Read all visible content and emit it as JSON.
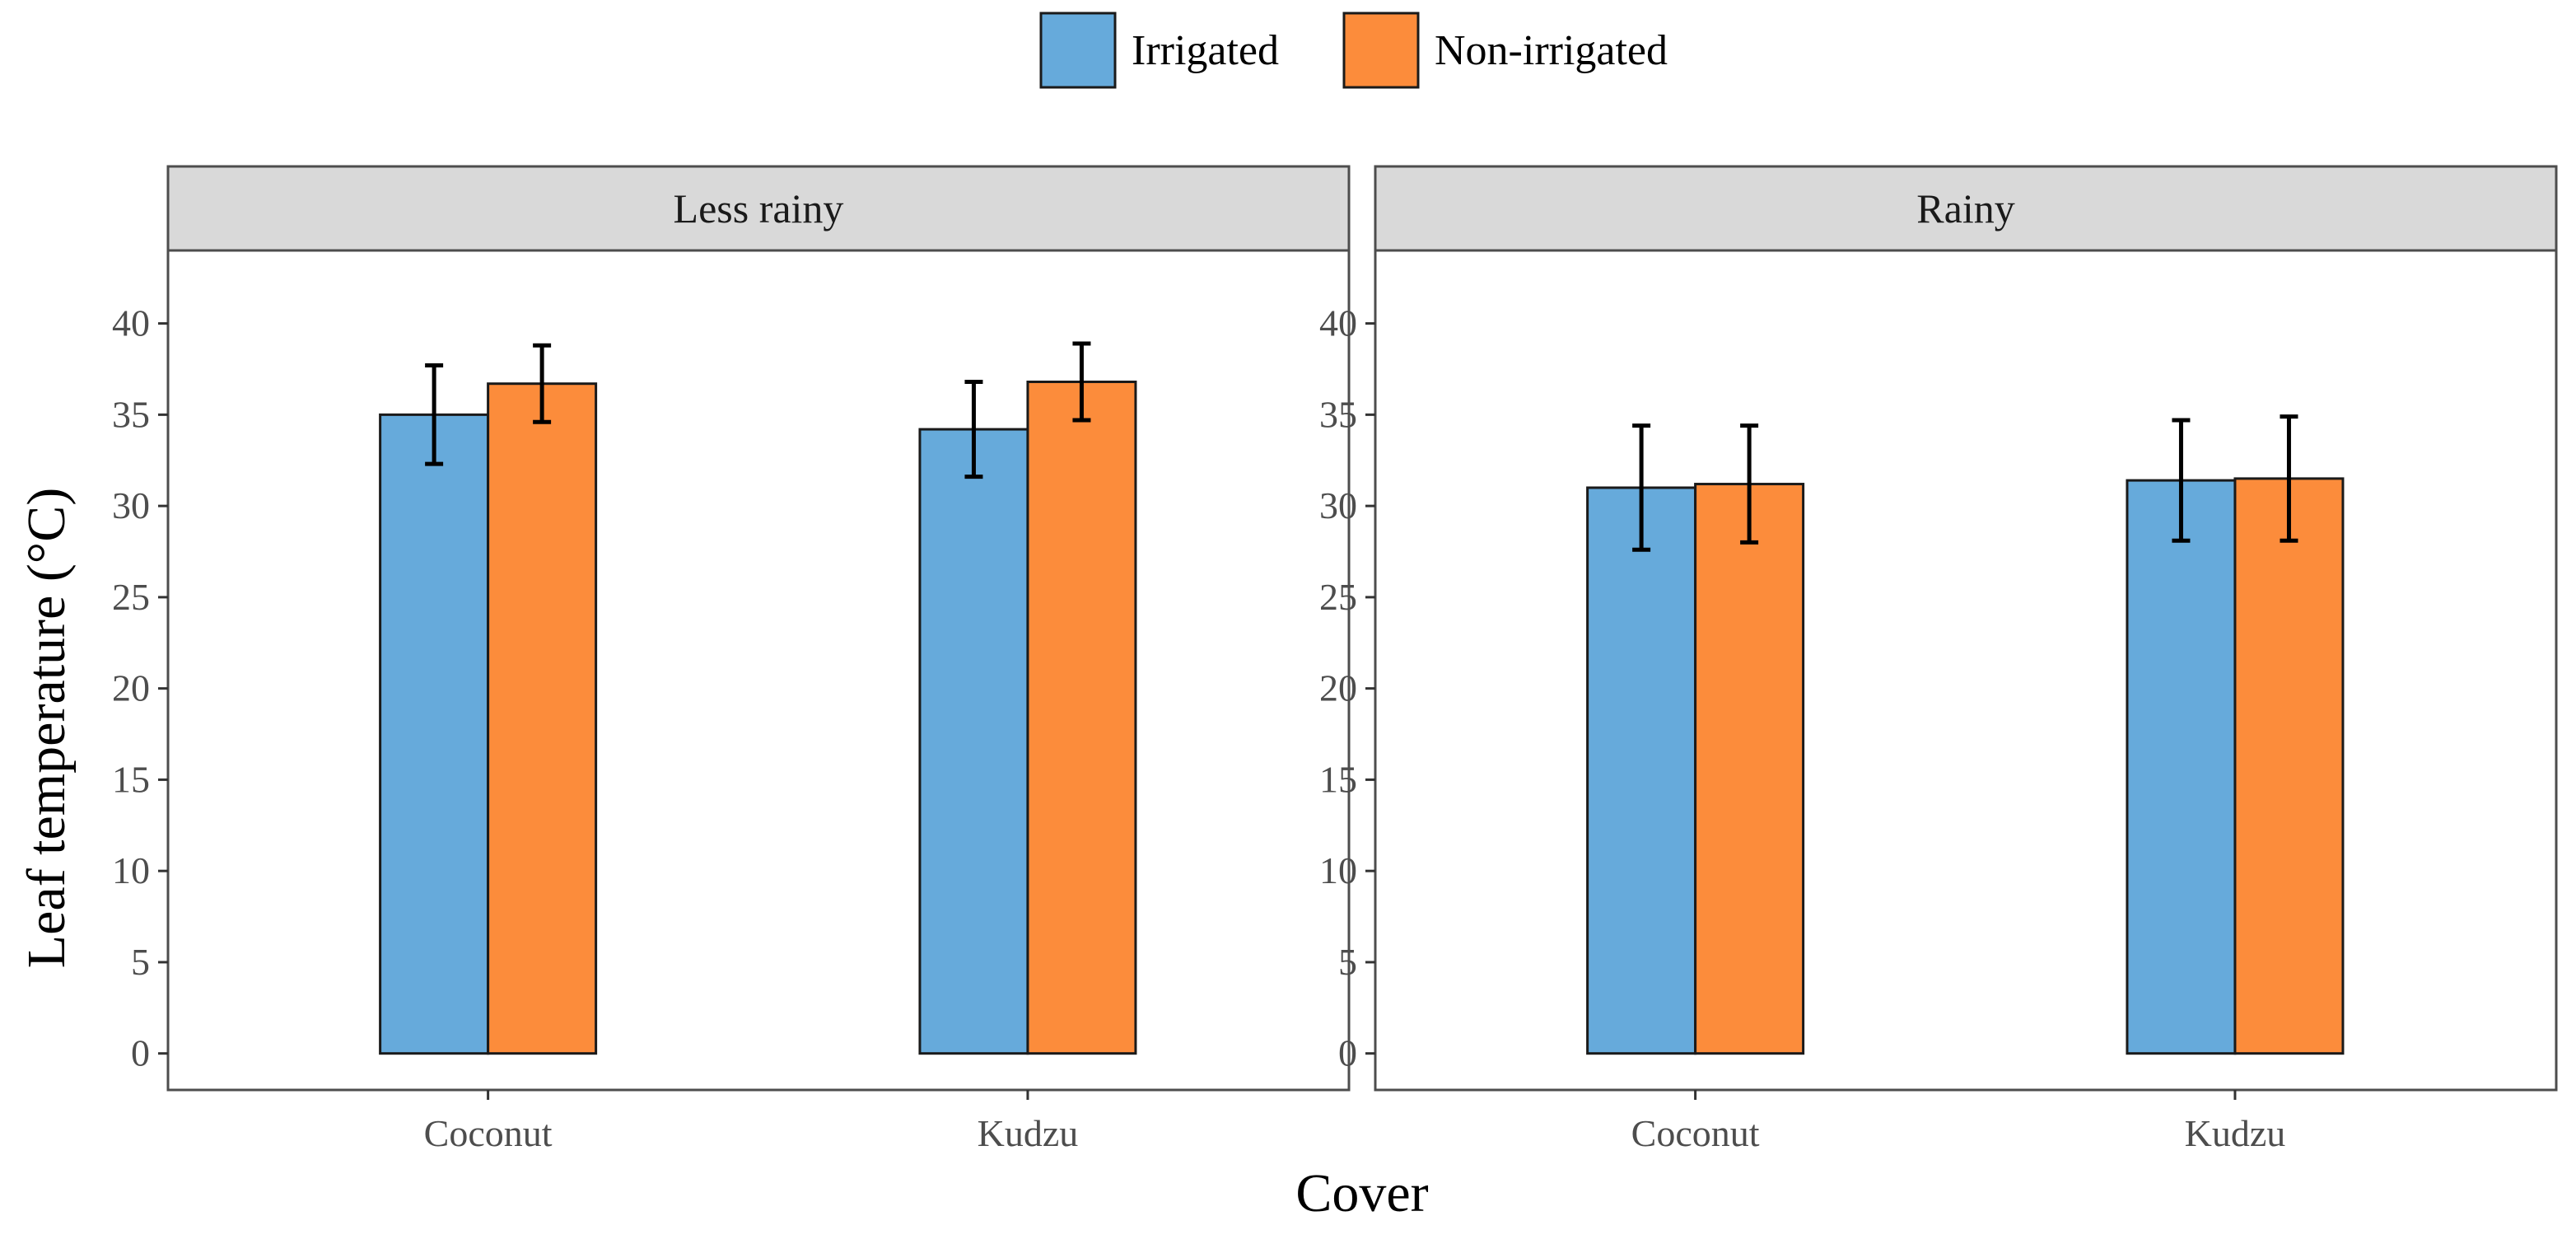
{
  "chart_data": {
    "type": "bar",
    "facet_variable": "Season",
    "panels": [
      {
        "title": "Less rainy",
        "categories": [
          "Coconut",
          "Kudzu"
        ],
        "series": [
          {
            "name": "Irrigated",
            "values": [
              35.0,
              34.2
            ],
            "errors": [
              2.7,
              2.6
            ]
          },
          {
            "name": "Non-irrigated",
            "values": [
              36.7,
              36.8
            ],
            "errors": [
              2.1,
              2.1
            ]
          }
        ]
      },
      {
        "title": "Rainy",
        "categories": [
          "Coconut",
          "Kudzu"
        ],
        "series": [
          {
            "name": "Irrigated",
            "values": [
              31.0,
              31.4
            ],
            "errors": [
              3.4,
              3.3
            ]
          },
          {
            "name": "Non-irrigated",
            "values": [
              31.2,
              31.5
            ],
            "errors": [
              3.2,
              3.4
            ]
          }
        ]
      }
    ],
    "legend": [
      "Irrigated",
      "Non-irrigated"
    ],
    "legend_position": "top",
    "colors": {
      "Irrigated": "#66aadb",
      "Non-irrigated": "#fc8c3b"
    },
    "xlabel": "Cover",
    "ylabel": "Leaf temperature (°C)",
    "ylim": [
      -2,
      44
    ],
    "yticks": [
      0,
      5,
      10,
      15,
      20,
      25,
      30,
      35,
      40
    ],
    "grid": false
  }
}
